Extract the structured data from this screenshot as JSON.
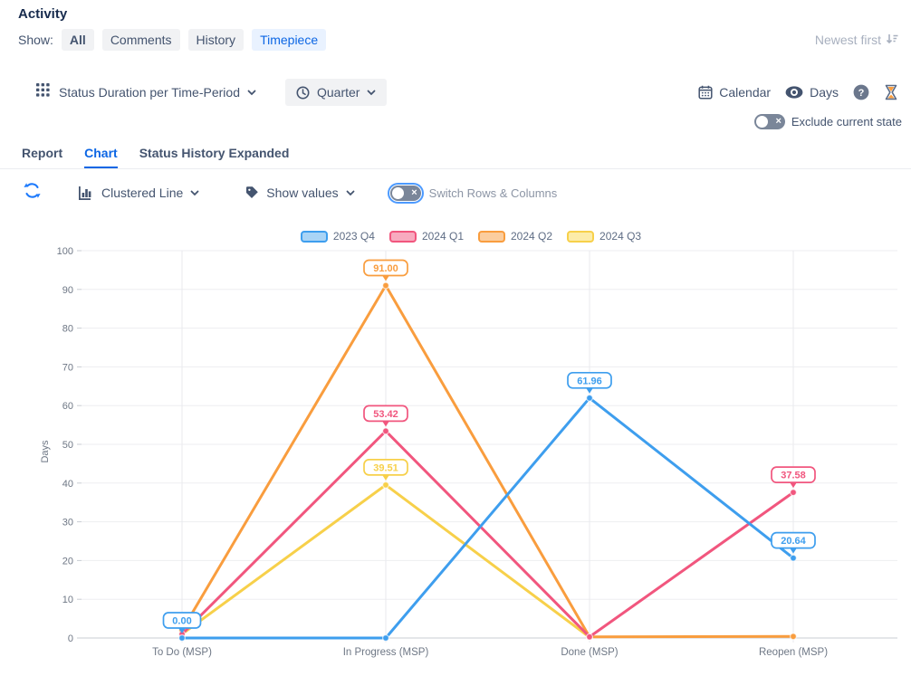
{
  "header": {
    "title": "Activity",
    "show_label": "Show:",
    "filters": [
      {
        "label": "All",
        "active": false
      },
      {
        "label": "Comments",
        "active": false
      },
      {
        "label": "History",
        "active": false
      },
      {
        "label": "Timepiece",
        "active": true
      }
    ],
    "sort_label": "Newest first"
  },
  "toolbar": {
    "report_selector": "Status Duration per Time-Period",
    "period_selector": "Quarter",
    "calendar_label": "Calendar",
    "unit_label": "Days",
    "exclude_toggle_label": "Exclude current state"
  },
  "tabs": [
    {
      "label": "Report",
      "active": false
    },
    {
      "label": "Chart",
      "active": true
    },
    {
      "label": "Status History Expanded",
      "active": false
    }
  ],
  "chart_toolbar": {
    "chart_type_label": "Clustered Line",
    "show_values_label": "Show values",
    "switch_label": "Switch Rows & Columns"
  },
  "chart_data": {
    "type": "line",
    "categories": [
      "To Do (MSP)",
      "In Progress (MSP)",
      "Done (MSP)",
      "Reopen (MSP)"
    ],
    "series": [
      {
        "name": "2023 Q4",
        "color": "#3E9EEE",
        "legend_fill": "#A9D4F6",
        "values": [
          0,
          0,
          61.96,
          20.64
        ],
        "labels": [
          "0.00",
          null,
          "61.96",
          "20.64"
        ]
      },
      {
        "name": "2024 Q1",
        "color": "#F1567E",
        "legend_fill": "#F8AABF",
        "values": [
          1,
          53.42,
          0.3,
          37.58
        ],
        "labels": [
          null,
          "53.42",
          null,
          "37.58"
        ]
      },
      {
        "name": "2024 Q2",
        "color": "#F99D3E",
        "legend_fill": "#FBCD9E",
        "values": [
          2,
          91,
          0.3,
          0.4
        ],
        "labels": [
          null,
          "91.00",
          null,
          null
        ]
      },
      {
        "name": "2024 Q3",
        "color": "#F7D04A",
        "legend_fill": "#FCECA9",
        "values": [
          1,
          39.51,
          0.2,
          null
        ],
        "labels": [
          null,
          "39.51",
          null,
          null
        ]
      }
    ],
    "title": "",
    "xlabel": "",
    "ylabel": "Days",
    "ylim": [
      0,
      100
    ],
    "ytick_step": 10,
    "grid": true,
    "legend_position": "top"
  }
}
